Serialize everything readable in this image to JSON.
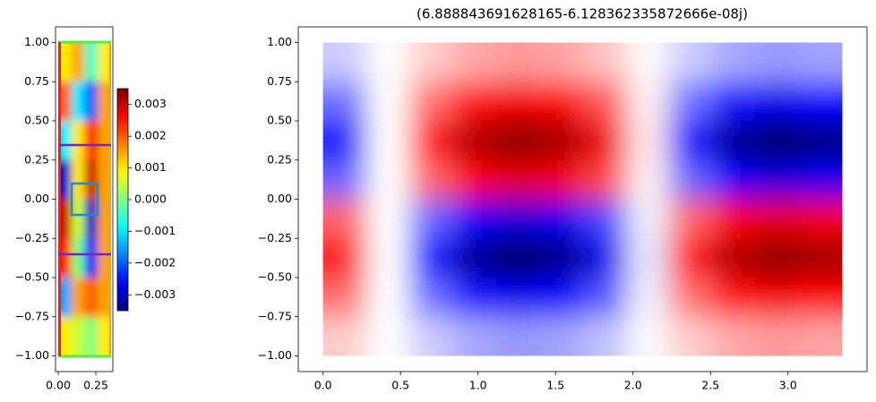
{
  "chart_data": [
    {
      "type": "heatmap",
      "colormap": "jet",
      "clim": [
        -0.0035,
        0.0035
      ],
      "extent": [
        0,
        0.35,
        -1,
        1
      ],
      "z": [
        [
          0.001,
          0.0015,
          -0.0005,
          0.001
        ],
        [
          0.002,
          -0.001,
          -0.002,
          0.0015
        ],
        [
          -0.001,
          0.001,
          0.0025,
          0.0015
        ],
        [
          -0.003,
          0.001,
          0.003,
          0.0015
        ],
        [
          0.003,
          0.0005,
          -0.003,
          0.0015
        ],
        [
          0.0025,
          0,
          -0.0025,
          0.0015
        ],
        [
          -0.0015,
          0.0015,
          0.002,
          0.0015
        ],
        [
          0.001,
          0.0005,
          0,
          0.001
        ]
      ],
      "xlim": [
        -0.018,
        0.363
      ],
      "ylim": [
        -1.1,
        1.1
      ],
      "xticks": [
        {
          "value": 0,
          "label": "0.00"
        },
        {
          "value": 0.25,
          "label": "0.25"
        }
      ],
      "yticks": [
        {
          "value": -1,
          "label": "−1.00"
        },
        {
          "value": -0.75,
          "label": "−0.75"
        },
        {
          "value": -0.5,
          "label": "−0.50"
        },
        {
          "value": -0.25,
          "label": "−0.25"
        },
        {
          "value": 0,
          "label": "0.00"
        },
        {
          "value": 0.25,
          "label": "0.25"
        },
        {
          "value": 0.5,
          "label": "0.50"
        },
        {
          "value": 0.75,
          "label": "0.75"
        },
        {
          "value": 1,
          "label": "1.00"
        }
      ],
      "colorbar_ticks": [
        {
          "value": -0.003,
          "label": "−0.003"
        },
        {
          "value": -0.002,
          "label": "−0.002"
        },
        {
          "value": -0.001,
          "label": "−0.001"
        },
        {
          "value": 0,
          "label": "0.000"
        },
        {
          "value": 0.001,
          "label": "0.001"
        },
        {
          "value": 0.002,
          "label": "0.002"
        },
        {
          "value": 0.003,
          "label": "0.003"
        }
      ]
    },
    {
      "type": "heatmap",
      "colormap": "seismic",
      "clim": [
        -1,
        1
      ],
      "title": "(6.888843691628165-6.128362335872666e-08j)",
      "extent": [
        0,
        3.35,
        -1,
        1
      ],
      "z": [
        [
          -0.1,
          0,
          0.1,
          0.17,
          0.2,
          0.18,
          0.12,
          0.01,
          -0.1,
          -0.17,
          -0.2,
          -0.18
        ],
        [
          -0.28,
          0,
          0.28,
          0.47,
          0.55,
          0.5,
          0.33,
          0.03,
          -0.28,
          -0.47,
          -0.55,
          -0.5
        ],
        [
          -0.48,
          0,
          0.48,
          0.81,
          0.95,
          0.86,
          0.57,
          0.05,
          -0.48,
          -0.81,
          -0.95,
          -0.86
        ],
        [
          -0.3,
          0,
          0.3,
          0.51,
          0.6,
          0.54,
          0.36,
          0.03,
          -0.3,
          -0.51,
          -0.6,
          -0.54
        ],
        [
          0.3,
          0,
          -0.3,
          -0.51,
          -0.6,
          -0.54,
          -0.36,
          -0.03,
          0.3,
          0.51,
          0.6,
          0.54
        ],
        [
          0.48,
          0,
          -0.48,
          -0.81,
          -0.95,
          -0.86,
          -0.57,
          -0.05,
          0.48,
          0.81,
          0.95,
          0.86
        ],
        [
          0.28,
          0,
          -0.28,
          -0.47,
          -0.55,
          -0.5,
          -0.33,
          -0.03,
          0.28,
          0.47,
          0.55,
          0.5
        ],
        [
          0.1,
          0,
          -0.1,
          -0.17,
          -0.2,
          -0.18,
          -0.12,
          -0.01,
          0.1,
          0.17,
          0.2,
          0.18
        ]
      ],
      "xlim": [
        -0.16,
        3.51
      ],
      "ylim": [
        -1.1,
        1.1
      ],
      "xticks": [
        {
          "value": 0,
          "label": "0.0"
        },
        {
          "value": 0.5,
          "label": "0.5"
        },
        {
          "value": 1,
          "label": "1.0"
        },
        {
          "value": 1.5,
          "label": "1.5"
        },
        {
          "value": 2,
          "label": "2.0"
        },
        {
          "value": 2.5,
          "label": "2.5"
        },
        {
          "value": 3,
          "label": "3.0"
        }
      ],
      "yticks": [
        {
          "value": -1,
          "label": "−1.00"
        },
        {
          "value": -0.75,
          "label": "−0.75"
        },
        {
          "value": -0.5,
          "label": "−0.50"
        },
        {
          "value": -0.25,
          "label": "−0.25"
        },
        {
          "value": 0,
          "label": "0.00"
        },
        {
          "value": 0.25,
          "label": "0.25"
        },
        {
          "value": 0.5,
          "label": "0.50"
        },
        {
          "value": 0.75,
          "label": "0.75"
        },
        {
          "value": 1,
          "label": "1.00"
        }
      ]
    }
  ]
}
